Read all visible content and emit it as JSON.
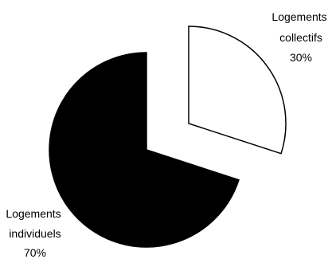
{
  "chart_data": {
    "type": "pie",
    "exploded": true,
    "slices": [
      {
        "label": "Logements collectifs",
        "label_lines": [
          "Logements",
          "collectifs"
        ],
        "value": 30,
        "value_label": "30%",
        "color": "#ffffff",
        "stroke": "#000000"
      },
      {
        "label": "Logements individuels",
        "label_lines": [
          "Logements",
          "individuels"
        ],
        "value": 70,
        "value_label": "70%",
        "color": "#000000",
        "stroke": "#000000"
      }
    ]
  }
}
